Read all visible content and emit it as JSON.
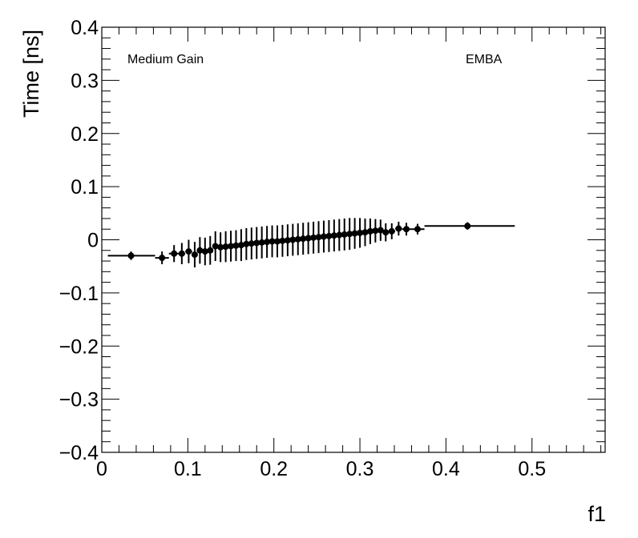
{
  "chart_data": {
    "type": "scatter",
    "xlabel": "f1",
    "ylabel": "Time [ns]",
    "xlim": [
      0,
      0.585
    ],
    "ylim": [
      -0.4,
      0.4
    ],
    "x_ticks": [
      0,
      0.1,
      0.2,
      0.3,
      0.4,
      0.5
    ],
    "x_tick_labels": [
      "0",
      "0.1",
      "0.2",
      "0.3",
      "0.4",
      "0.5"
    ],
    "y_ticks": [
      -0.4,
      -0.3,
      -0.2,
      -0.1,
      0,
      0.1,
      0.2,
      0.3,
      0.4
    ],
    "y_tick_labels": [
      "−0.4",
      "−0.3",
      "−0.2",
      "−0.1",
      "0",
      "0.1",
      "0.2",
      "0.3",
      "0.4"
    ],
    "annotations": [
      "Medium Gain",
      "EMBA"
    ],
    "grid": false,
    "marker_color": "#000000",
    "points": [
      {
        "x": 0.034,
        "y": -0.03,
        "xlo": 0.007,
        "xhi": 0.062,
        "err": 0.008
      },
      {
        "x": 0.07,
        "y": -0.034,
        "xlo": 0.062,
        "xhi": 0.078,
        "err": 0.012
      },
      {
        "x": 0.084,
        "y": -0.026,
        "xlo": 0.078,
        "xhi": 0.09,
        "err": 0.016
      },
      {
        "x": 0.093,
        "y": -0.026,
        "xlo": 0.09,
        "xhi": 0.097,
        "err": 0.02
      },
      {
        "x": 0.101,
        "y": -0.022,
        "xlo": 0.097,
        "xhi": 0.105,
        "err": 0.022
      },
      {
        "x": 0.108,
        "y": -0.028,
        "xlo": 0.105,
        "xhi": 0.111,
        "err": 0.024
      },
      {
        "x": 0.114,
        "y": -0.02,
        "xlo": 0.111,
        "xhi": 0.117,
        "err": 0.025
      },
      {
        "x": 0.12,
        "y": -0.022,
        "xlo": 0.117,
        "xhi": 0.123,
        "err": 0.026
      },
      {
        "x": 0.126,
        "y": -0.02,
        "xlo": 0.123,
        "xhi": 0.129,
        "err": 0.027
      },
      {
        "x": 0.132,
        "y": -0.012,
        "xlo": 0.129,
        "xhi": 0.135,
        "err": 0.028
      },
      {
        "x": 0.138,
        "y": -0.014,
        "xlo": 0.135,
        "xhi": 0.141,
        "err": 0.028
      },
      {
        "x": 0.144,
        "y": -0.013,
        "xlo": 0.141,
        "xhi": 0.147,
        "err": 0.029
      },
      {
        "x": 0.15,
        "y": -0.012,
        "xlo": 0.147,
        "xhi": 0.153,
        "err": 0.029
      },
      {
        "x": 0.156,
        "y": -0.011,
        "xlo": 0.153,
        "xhi": 0.159,
        "err": 0.029
      },
      {
        "x": 0.162,
        "y": -0.01,
        "xlo": 0.159,
        "xhi": 0.165,
        "err": 0.03
      },
      {
        "x": 0.168,
        "y": -0.008,
        "xlo": 0.165,
        "xhi": 0.171,
        "err": 0.03
      },
      {
        "x": 0.174,
        "y": -0.007,
        "xlo": 0.171,
        "xhi": 0.177,
        "err": 0.03
      },
      {
        "x": 0.18,
        "y": -0.006,
        "xlo": 0.177,
        "xhi": 0.183,
        "err": 0.03
      },
      {
        "x": 0.186,
        "y": -0.005,
        "xlo": 0.183,
        "xhi": 0.189,
        "err": 0.03
      },
      {
        "x": 0.192,
        "y": -0.004,
        "xlo": 0.189,
        "xhi": 0.195,
        "err": 0.03
      },
      {
        "x": 0.198,
        "y": -0.003,
        "xlo": 0.195,
        "xhi": 0.201,
        "err": 0.03
      },
      {
        "x": 0.204,
        "y": -0.003,
        "xlo": 0.201,
        "xhi": 0.207,
        "err": 0.03
      },
      {
        "x": 0.21,
        "y": -0.002,
        "xlo": 0.207,
        "xhi": 0.213,
        "err": 0.03
      },
      {
        "x": 0.216,
        "y": -0.001,
        "xlo": 0.213,
        "xhi": 0.219,
        "err": 0.03
      },
      {
        "x": 0.222,
        "y": 0.0,
        "xlo": 0.219,
        "xhi": 0.225,
        "err": 0.03
      },
      {
        "x": 0.228,
        "y": 0.001,
        "xlo": 0.225,
        "xhi": 0.231,
        "err": 0.03
      },
      {
        "x": 0.234,
        "y": 0.002,
        "xlo": 0.231,
        "xhi": 0.237,
        "err": 0.03
      },
      {
        "x": 0.24,
        "y": 0.003,
        "xlo": 0.237,
        "xhi": 0.243,
        "err": 0.03
      },
      {
        "x": 0.246,
        "y": 0.004,
        "xlo": 0.243,
        "xhi": 0.249,
        "err": 0.03
      },
      {
        "x": 0.252,
        "y": 0.005,
        "xlo": 0.249,
        "xhi": 0.255,
        "err": 0.03
      },
      {
        "x": 0.258,
        "y": 0.006,
        "xlo": 0.255,
        "xhi": 0.261,
        "err": 0.03
      },
      {
        "x": 0.264,
        "y": 0.007,
        "xlo": 0.261,
        "xhi": 0.267,
        "err": 0.03
      },
      {
        "x": 0.27,
        "y": 0.008,
        "xlo": 0.267,
        "xhi": 0.273,
        "err": 0.03
      },
      {
        "x": 0.276,
        "y": 0.009,
        "xlo": 0.273,
        "xhi": 0.279,
        "err": 0.03
      },
      {
        "x": 0.282,
        "y": 0.01,
        "xlo": 0.279,
        "xhi": 0.285,
        "err": 0.03
      },
      {
        "x": 0.288,
        "y": 0.011,
        "xlo": 0.285,
        "xhi": 0.291,
        "err": 0.03
      },
      {
        "x": 0.294,
        "y": 0.012,
        "xlo": 0.291,
        "xhi": 0.297,
        "err": 0.029
      },
      {
        "x": 0.3,
        "y": 0.013,
        "xlo": 0.297,
        "xhi": 0.303,
        "err": 0.028
      },
      {
        "x": 0.306,
        "y": 0.014,
        "xlo": 0.303,
        "xhi": 0.309,
        "err": 0.026
      },
      {
        "x": 0.312,
        "y": 0.016,
        "xlo": 0.309,
        "xhi": 0.315,
        "err": 0.024
      },
      {
        "x": 0.318,
        "y": 0.017,
        "xlo": 0.315,
        "xhi": 0.321,
        "err": 0.022
      },
      {
        "x": 0.324,
        "y": 0.018,
        "xlo": 0.321,
        "xhi": 0.327,
        "err": 0.02
      },
      {
        "x": 0.33,
        "y": 0.014,
        "xlo": 0.327,
        "xhi": 0.333,
        "err": 0.017
      },
      {
        "x": 0.337,
        "y": 0.016,
        "xlo": 0.333,
        "xhi": 0.341,
        "err": 0.015
      },
      {
        "x": 0.345,
        "y": 0.021,
        "xlo": 0.341,
        "xhi": 0.349,
        "err": 0.013
      },
      {
        "x": 0.354,
        "y": 0.02,
        "xlo": 0.349,
        "xhi": 0.36,
        "err": 0.012
      },
      {
        "x": 0.367,
        "y": 0.02,
        "xlo": 0.36,
        "xhi": 0.375,
        "err": 0.01
      },
      {
        "x": 0.425,
        "y": 0.026,
        "xlo": 0.375,
        "xhi": 0.48,
        "err": 0.007
      }
    ]
  }
}
